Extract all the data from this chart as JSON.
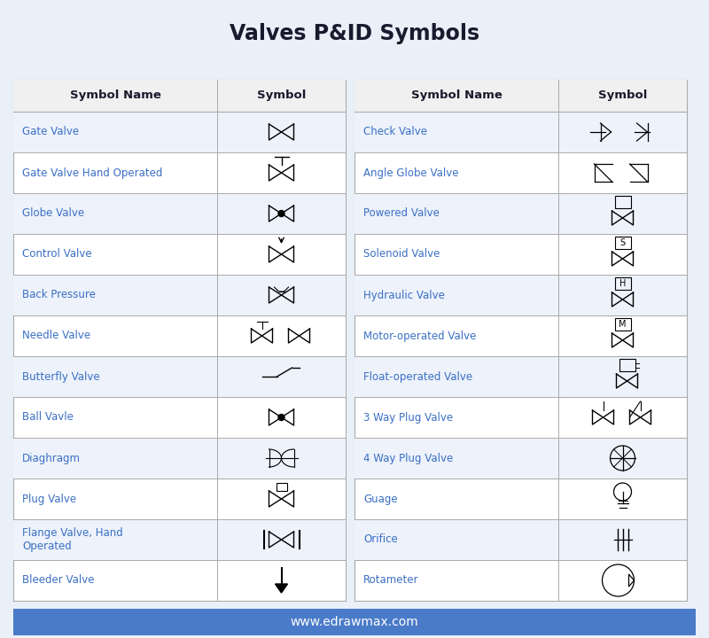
{
  "title": "Valves P&ID Symbols",
  "background_color": "#eaf0f8",
  "footer_bg": "#4a7bc8",
  "footer_text": "www.edrawmax.com",
  "footer_text_color": "#ffffff",
  "name_color": "#3a6fc4",
  "header_color": "#1a1a2e",
  "left_items": [
    "Gate Valve",
    "Gate Valve Hand Operated",
    "Globe Valve",
    "Control Valve",
    "Back Pressure",
    "Needle Valve",
    "Butterfly Valve",
    "Ball Vavle",
    "Diaghragm",
    "Plug Valve",
    "Flange Valve, Hand\nOperated",
    "Bleeder Valve"
  ],
  "right_items": [
    "Check Valve",
    "Angle Globe Valve",
    "Powered Valve",
    "Solenoid Valve",
    "Hydraulic Valve",
    "Motor-operated Valve",
    "Float-operated Valve",
    "3 Way Plug Valve",
    "4 Way Plug Valve",
    "Guage",
    "Orifice",
    "Rotameter"
  ]
}
